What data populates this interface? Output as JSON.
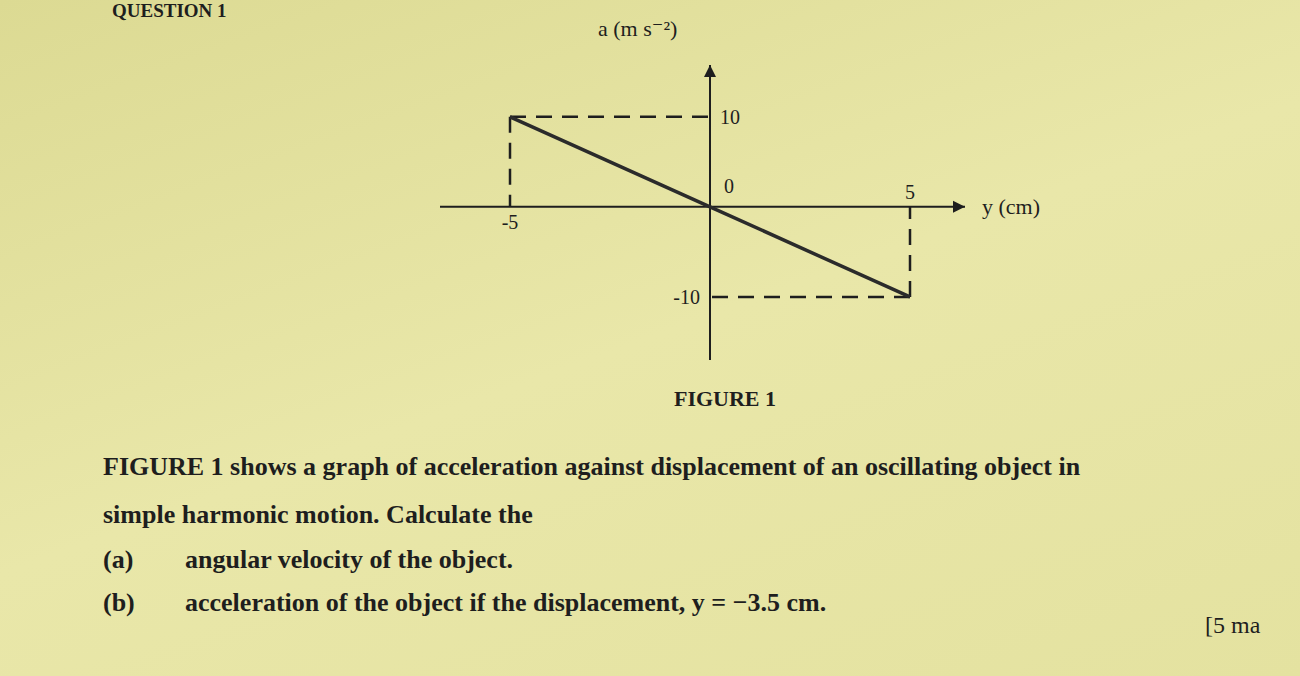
{
  "chart_data": {
    "type": "line",
    "title": "FIGURE 1",
    "x": [
      -5,
      0,
      5
    ],
    "values": [
      10,
      0,
      -10
    ],
    "color": "#2b2b2b",
    "line_style": "solid",
    "x_label": "y (cm)",
    "y_label": "a (m s⁻²)",
    "xlim": [
      -6.75,
      6.375
    ],
    "ylim": [
      -17,
      15.75
    ],
    "xticks": [
      -5,
      0,
      5
    ],
    "yticks": [
      -10,
      10
    ],
    "grid": false,
    "annotations": [
      "QUESTION 1",
      "FIGURE 1 shows a graph of acceleration against displacement of an oscillating object in",
      "simple harmonic motion. Calculate the",
      "(a)",
      "angular velocity of the object.",
      "(b)",
      "acceleration of the object if the displacement, y = −3.5 cm.",
      "[5 ma"
    ]
  }
}
